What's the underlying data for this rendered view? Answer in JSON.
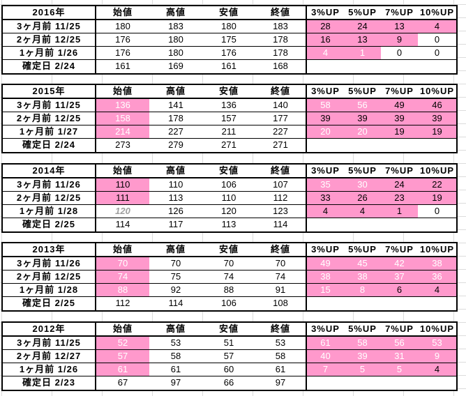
{
  "headers": [
    "始値",
    "高値",
    "安値",
    "終値",
    "3%UP",
    "5%UP",
    "7%UP",
    "10%UP"
  ],
  "colors": {
    "highlight": "#ff99cc",
    "grid": "#dcdcdc",
    "border": "#000000"
  },
  "blocks": [
    {
      "year": "2016年",
      "rows": [
        {
          "label": "3ヶ月前  11/25",
          "open": "180",
          "high": "183",
          "low": "180",
          "close": "183",
          "up3": "28",
          "up5": "24",
          "up7": "13",
          "up10": "4"
        },
        {
          "label": "2ヶ月前  12/25",
          "open": "176",
          "high": "180",
          "low": "175",
          "close": "178",
          "up3": "16",
          "up5": "13",
          "up7": "9",
          "up10": "0"
        },
        {
          "label": "1ヶ月前  1/26",
          "open": "176",
          "high": "180",
          "low": "176",
          "close": "178",
          "up3": "4",
          "up5": "1",
          "up7": "0",
          "up10": "0"
        },
        {
          "label": "確定日  2/24",
          "open": "161",
          "high": "169",
          "low": "161",
          "close": "168"
        }
      ]
    },
    {
      "year": "2015年",
      "rows": [
        {
          "label": "3ヶ月前  11/25",
          "open": "136",
          "high": "141",
          "low": "136",
          "close": "140",
          "up3": "58",
          "up5": "56",
          "up7": "49",
          "up10": "46"
        },
        {
          "label": "2ヶ月前  12/25",
          "open": "158",
          "high": "178",
          "low": "157",
          "close": "177",
          "up3": "39",
          "up5": "39",
          "up7": "39",
          "up10": "39"
        },
        {
          "label": "1ヶ月前  1/27",
          "open": "214",
          "high": "227",
          "low": "211",
          "close": "227",
          "up3": "20",
          "up5": "20",
          "up7": "19",
          "up10": "19"
        },
        {
          "label": "確定日  2/24",
          "open": "273",
          "high": "279",
          "low": "271",
          "close": "271"
        }
      ]
    },
    {
      "year": "2014年",
      "rows": [
        {
          "label": "3ヶ月前  11/26",
          "open": "110",
          "high": "110",
          "low": "106",
          "close": "107",
          "up3": "35",
          "up5": "30",
          "up7": "24",
          "up10": "22"
        },
        {
          "label": "2ヶ月前  12/25",
          "open": "111",
          "high": "113",
          "low": "110",
          "close": "112",
          "up3": "33",
          "up5": "26",
          "up7": "23",
          "up10": "19"
        },
        {
          "label": "1ヶ月前  1/28",
          "open": "120",
          "high": "126",
          "low": "120",
          "close": "123",
          "up3": "4",
          "up5": "4",
          "up7": "1",
          "up10": "0"
        },
        {
          "label": "確定日  2/25",
          "open": "114",
          "high": "117",
          "low": "113",
          "close": "114"
        }
      ]
    },
    {
      "year": "2013年",
      "rows": [
        {
          "label": "3ヶ月前  11/26",
          "open": "70",
          "high": "70",
          "low": "70",
          "close": "70",
          "up3": "49",
          "up5": "45",
          "up7": "42",
          "up10": "38"
        },
        {
          "label": "2ヶ月前  12/25",
          "open": "74",
          "high": "75",
          "low": "74",
          "close": "74",
          "up3": "38",
          "up5": "38",
          "up7": "37",
          "up10": "36"
        },
        {
          "label": "1ヶ月前  1/28",
          "open": "88",
          "high": "92",
          "low": "88",
          "close": "91",
          "up3": "15",
          "up5": "8",
          "up7": "6",
          "up10": "4"
        },
        {
          "label": "確定日  2/25",
          "open": "112",
          "high": "114",
          "low": "106",
          "close": "108"
        }
      ]
    },
    {
      "year": "2012年",
      "rows": [
        {
          "label": "3ヶ月前  11/25",
          "open": "52",
          "high": "53",
          "low": "51",
          "close": "53",
          "up3": "61",
          "up5": "58",
          "up7": "56",
          "up10": "53"
        },
        {
          "label": "2ヶ月前  12/27",
          "open": "57",
          "high": "58",
          "low": "57",
          "close": "58",
          "up3": "40",
          "up5": "39",
          "up7": "31",
          "up10": "9"
        },
        {
          "label": "1ヶ月前  1/26",
          "open": "61",
          "high": "61",
          "low": "60",
          "close": "61",
          "up3": "7",
          "up5": "5",
          "up7": "5",
          "up10": "4"
        },
        {
          "label": "確定日  2/23",
          "open": "67",
          "high": "97",
          "low": "66",
          "close": "97"
        }
      ]
    }
  ]
}
